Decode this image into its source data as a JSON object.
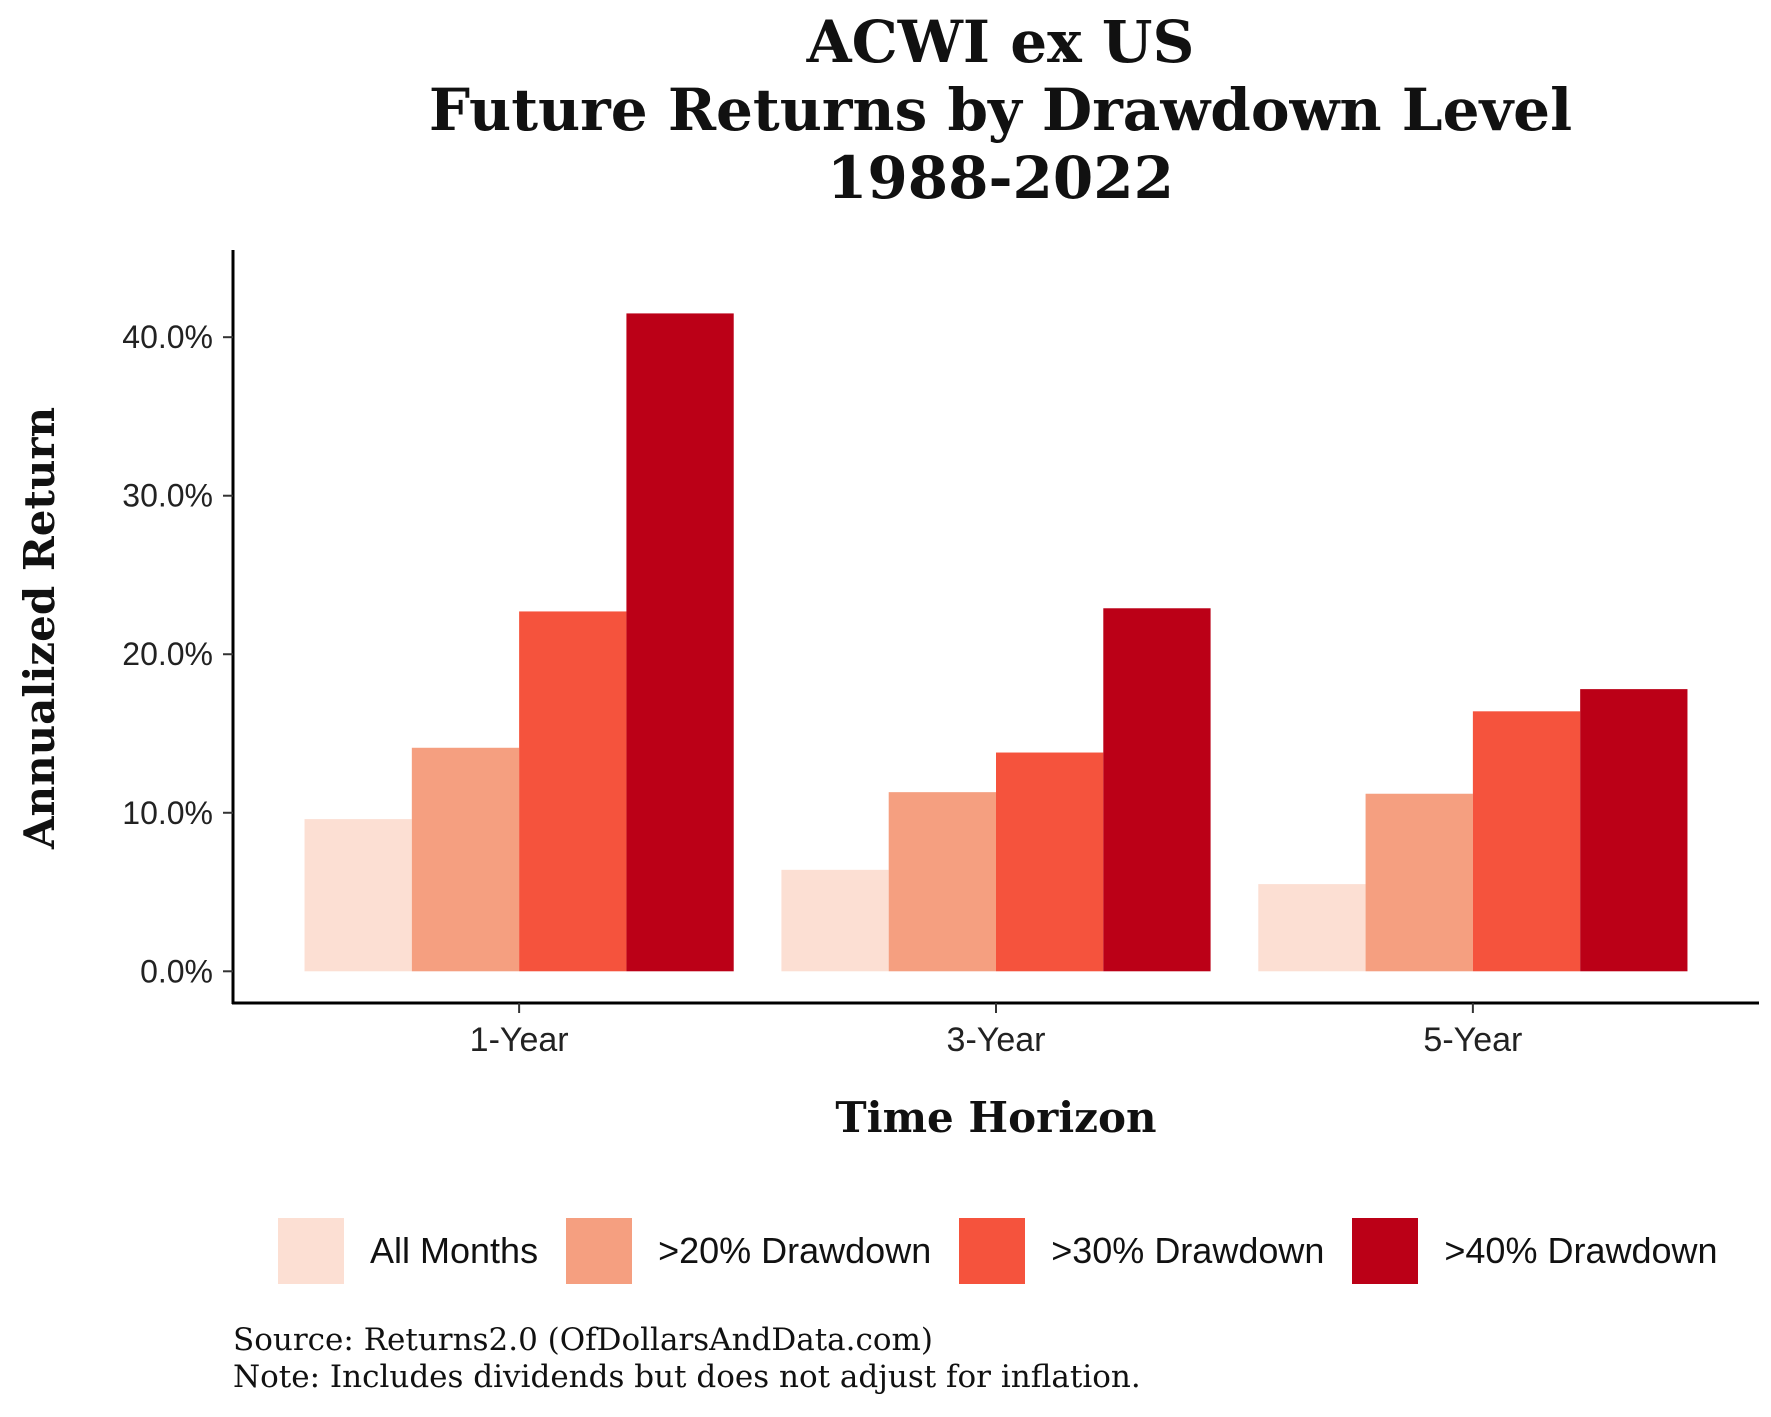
{
  "chart_data": {
    "type": "bar",
    "title_lines": [
      "ACWI ex US",
      "Future Returns by Drawdown Level",
      "1988-2022"
    ],
    "xlabel": "Time Horizon",
    "ylabel": "Annualized Return",
    "categories": [
      "1-Year",
      "3-Year",
      "5-Year"
    ],
    "series": [
      {
        "name": "All Months",
        "color": "#fcdfd3",
        "values": [
          9.6,
          6.4,
          5.5
        ]
      },
      {
        "name": ">20% Drawdown",
        "color": "#f59f80",
        "values": [
          14.1,
          11.3,
          11.2
        ]
      },
      {
        "name": ">30% Drawdown",
        "color": "#f5533d",
        "values": [
          22.7,
          13.8,
          16.4
        ]
      },
      {
        "name": ">40% Drawdown",
        "color": "#bb0017",
        "values": [
          41.5,
          22.9,
          17.8
        ]
      }
    ],
    "ylim": [
      -2,
      45.5
    ],
    "yticks": [
      0,
      10,
      20,
      30,
      40
    ],
    "ytick_labels": [
      "0.0%",
      "10.0%",
      "20.0%",
      "30.0%",
      "40.0%"
    ],
    "grid": false,
    "legend_position": "bottom"
  },
  "notes": {
    "source": "Source: Returns2.0 (OfDollarsAndData.com)",
    "note": "Note: Includes dividends but does not adjust for inflation."
  }
}
